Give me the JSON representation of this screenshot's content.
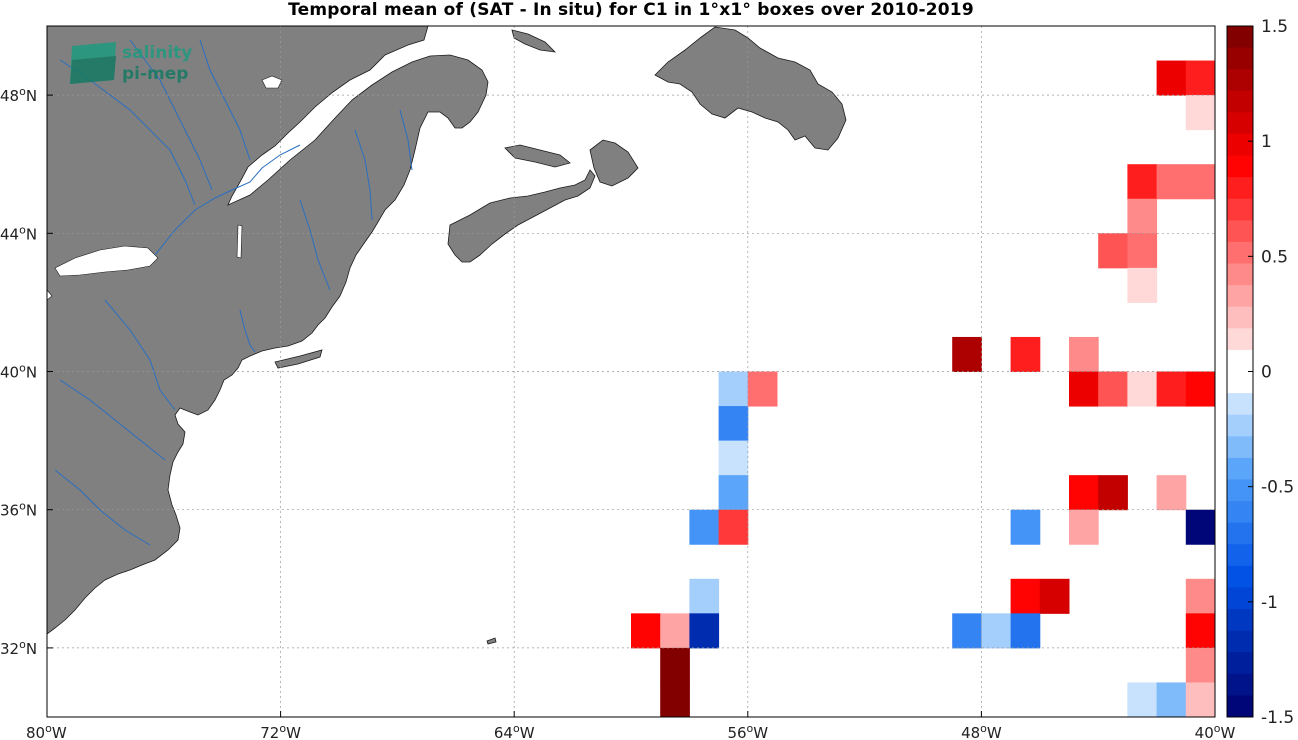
{
  "title": "Temporal mean of (SAT - In situ) for C1 in 1°x1° boxes over 2010-2019",
  "logo": {
    "line1": "salinity",
    "line2": "pi-mep"
  },
  "map": {
    "lon_range": [
      -80,
      -40
    ],
    "lat_range": [
      30,
      50
    ],
    "land_color": "#808080",
    "river_color": "#2a6fc0",
    "grid": true,
    "lon_ticks": [
      {
        "value": -80,
        "label": "80",
        "suffix": "W"
      },
      {
        "value": -72,
        "label": "72",
        "suffix": "W"
      },
      {
        "value": -64,
        "label": "64",
        "suffix": "W"
      },
      {
        "value": -56,
        "label": "56",
        "suffix": "W"
      },
      {
        "value": -48,
        "label": "48",
        "suffix": "W"
      },
      {
        "value": -40,
        "label": "40",
        "suffix": "W"
      }
    ],
    "lat_ticks": [
      {
        "value": 48,
        "label": "48",
        "suffix": "N"
      },
      {
        "value": 44,
        "label": "44",
        "suffix": "N"
      },
      {
        "value": 40,
        "label": "40",
        "suffix": "N"
      },
      {
        "value": 36,
        "label": "36",
        "suffix": "N"
      },
      {
        "value": 32,
        "label": "32",
        "suffix": "N"
      }
    ]
  },
  "colorbar": {
    "range": [
      -1.5,
      1.5
    ],
    "levels": 32,
    "tick_values": [
      1.5,
      1,
      0.5,
      0,
      -0.5,
      -1,
      -1.5
    ],
    "tick_labels": [
      "1.5",
      "1",
      "0.5",
      "0",
      "-0.5",
      "-1",
      "-1.5"
    ]
  },
  "chart_data": {
    "type": "heatmap",
    "title": "Temporal mean of (SAT - In situ) for C1 in 1°x1° boxes over 2010-2019",
    "xlabel": "",
    "ylabel": "",
    "units_note": "cells are 1°x1° boxes indexed by lower-left lon/lat",
    "xlim": [
      -80,
      -40
    ],
    "ylim": [
      30,
      50
    ],
    "cells": [
      {
        "lon": -42,
        "lat": 48,
        "value": 0.95
      },
      {
        "lon": -41,
        "lat": 48,
        "value": 0.8
      },
      {
        "lon": -41,
        "lat": 47,
        "value": 0.15
      },
      {
        "lon": -43,
        "lat": 45,
        "value": 0.8
      },
      {
        "lon": -42,
        "lat": 45,
        "value": 0.5
      },
      {
        "lon": -41,
        "lat": 45,
        "value": 0.5
      },
      {
        "lon": -43,
        "lat": 44,
        "value": 0.4
      },
      {
        "lon": -44,
        "lat": 43,
        "value": 0.65
      },
      {
        "lon": -43,
        "lat": 43,
        "value": 0.55
      },
      {
        "lon": -43,
        "lat": 42,
        "value": 0.15
      },
      {
        "lon": -49,
        "lat": 40,
        "value": 1.3
      },
      {
        "lon": -47,
        "lat": 40,
        "value": 0.8
      },
      {
        "lon": -45,
        "lat": 40,
        "value": 0.4
      },
      {
        "lon": -45,
        "lat": 39,
        "value": 0.95
      },
      {
        "lon": -44,
        "lat": 39,
        "value": 0.65
      },
      {
        "lon": -43,
        "lat": 39,
        "value": 0.15
      },
      {
        "lon": -42,
        "lat": 39,
        "value": 0.8
      },
      {
        "lon": -41,
        "lat": 39,
        "value": 0.9
      },
      {
        "lon": -57,
        "lat": 39,
        "value": -0.25
      },
      {
        "lon": -56,
        "lat": 39,
        "value": 0.5
      },
      {
        "lon": -57,
        "lat": 38,
        "value": -0.6
      },
      {
        "lon": -57,
        "lat": 37,
        "value": -0.15
      },
      {
        "lon": -57,
        "lat": 36,
        "value": -0.4
      },
      {
        "lon": -45,
        "lat": 36,
        "value": 0.85
      },
      {
        "lon": -44,
        "lat": 36,
        "value": 1.2
      },
      {
        "lon": -42,
        "lat": 36,
        "value": 0.3
      },
      {
        "lon": -58,
        "lat": 35,
        "value": -0.5
      },
      {
        "lon": -57,
        "lat": 35,
        "value": 0.7
      },
      {
        "lon": -47,
        "lat": 35,
        "value": -0.55
      },
      {
        "lon": -45,
        "lat": 35,
        "value": 0.3
      },
      {
        "lon": -41,
        "lat": 35,
        "value": -1.5
      },
      {
        "lon": -58,
        "lat": 33,
        "value": -0.25
      },
      {
        "lon": -47,
        "lat": 33,
        "value": 0.9
      },
      {
        "lon": -46,
        "lat": 33,
        "value": 1.05
      },
      {
        "lon": -41,
        "lat": 33,
        "value": 0.4
      },
      {
        "lon": -60,
        "lat": 32,
        "value": 0.85
      },
      {
        "lon": -59,
        "lat": 32,
        "value": 0.3
      },
      {
        "lon": -58,
        "lat": 32,
        "value": -1.2
      },
      {
        "lon": -49,
        "lat": 32,
        "value": -0.65
      },
      {
        "lon": -48,
        "lat": 32,
        "value": -0.25
      },
      {
        "lon": -47,
        "lat": 32,
        "value": -0.75
      },
      {
        "lon": -41,
        "lat": 32,
        "value": 0.85
      },
      {
        "lon": -41,
        "lat": 31,
        "value": 0.45
      },
      {
        "lon": -59,
        "lat": 31,
        "value": 1.45
      },
      {
        "lon": -59,
        "lat": 30,
        "value": 1.45
      },
      {
        "lon": -43,
        "lat": 30,
        "value": -0.1
      },
      {
        "lon": -42,
        "lat": 30,
        "value": -0.3
      },
      {
        "lon": -41,
        "lat": 30,
        "value": 0.25
      }
    ]
  }
}
